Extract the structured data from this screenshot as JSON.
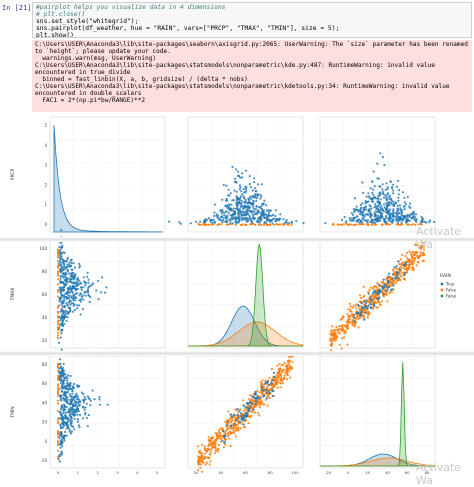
{
  "cell": {
    "prompt": "In [21]:",
    "code_lines": [
      {
        "t": "#pairplot helps you visualize data in 4 dimensions",
        "c": "cm"
      },
      {
        "t": "# plt.close()",
        "c": "cm"
      },
      {
        "t": "sns.set_style(\"whitegrid\");",
        "c": ""
      },
      {
        "t": "sns.pairplot(df_weather, hue = \"RAIN\", vars=[\"PRCP\", \"TMAX\", \"TMIN\"], size = 5);",
        "c": ""
      },
      {
        "t": "plt.show()",
        "c": ""
      }
    ],
    "warning_lines": [
      "C:\\Users\\USER\\Anaconda3\\lib\\site-packages\\seaborn\\axisgrid.py:2065: UserWarning: The `size` parameter has been renamed to `height`; please update your code.",
      "  warnings.warn(msg, UserWarning)",
      "C:\\Users\\USER\\Anaconda3\\lib\\site-packages\\statsmodels\\nonparametric\\kde.py:487: RuntimeWarning: invalid value encountered in true_divide",
      "  binned = fast_linbin(X, a, b, gridsize) / (delta * nobs)",
      "C:\\Users\\USER\\Anaconda3\\lib\\site-packages\\statsmodels\\nonparametric\\kdetools.py:34: RuntimeWarning: invalid value encountered in double_scalars",
      "  FAC1 = 2*(np.pi*bw/RANGE)**2"
    ]
  },
  "pairplot": {
    "vars": [
      "PRCP",
      "TMAX",
      "TMIN"
    ],
    "hue": "RAIN",
    "legend_title": "RAIN",
    "legend_entries": [
      "True",
      "False",
      "False"
    ],
    "colors": {
      "true": "#1f77b4",
      "false": "#ff7f0e",
      "extra": "#2ca02c"
    },
    "y_ticks": {
      "PRCP": [
        "5",
        "4",
        "3",
        "2",
        "1",
        "0"
      ],
      "TMAX": [
        "100",
        "80",
        "60",
        "40",
        "20"
      ],
      "TMIN": [
        "80",
        "60",
        "40",
        "20",
        "0",
        "-20"
      ]
    },
    "x_ticks": {
      "PRCP": [
        "0",
        "1",
        "2",
        "3",
        "4",
        "5"
      ],
      "TMAX": [
        "20",
        "40",
        "60",
        "80",
        "100"
      ],
      "TMIN": [
        "-20",
        "0",
        "20",
        "40",
        "60",
        "80"
      ]
    }
  },
  "watermarks": [
    "Activate Wa",
    "Activate Wa"
  ]
}
